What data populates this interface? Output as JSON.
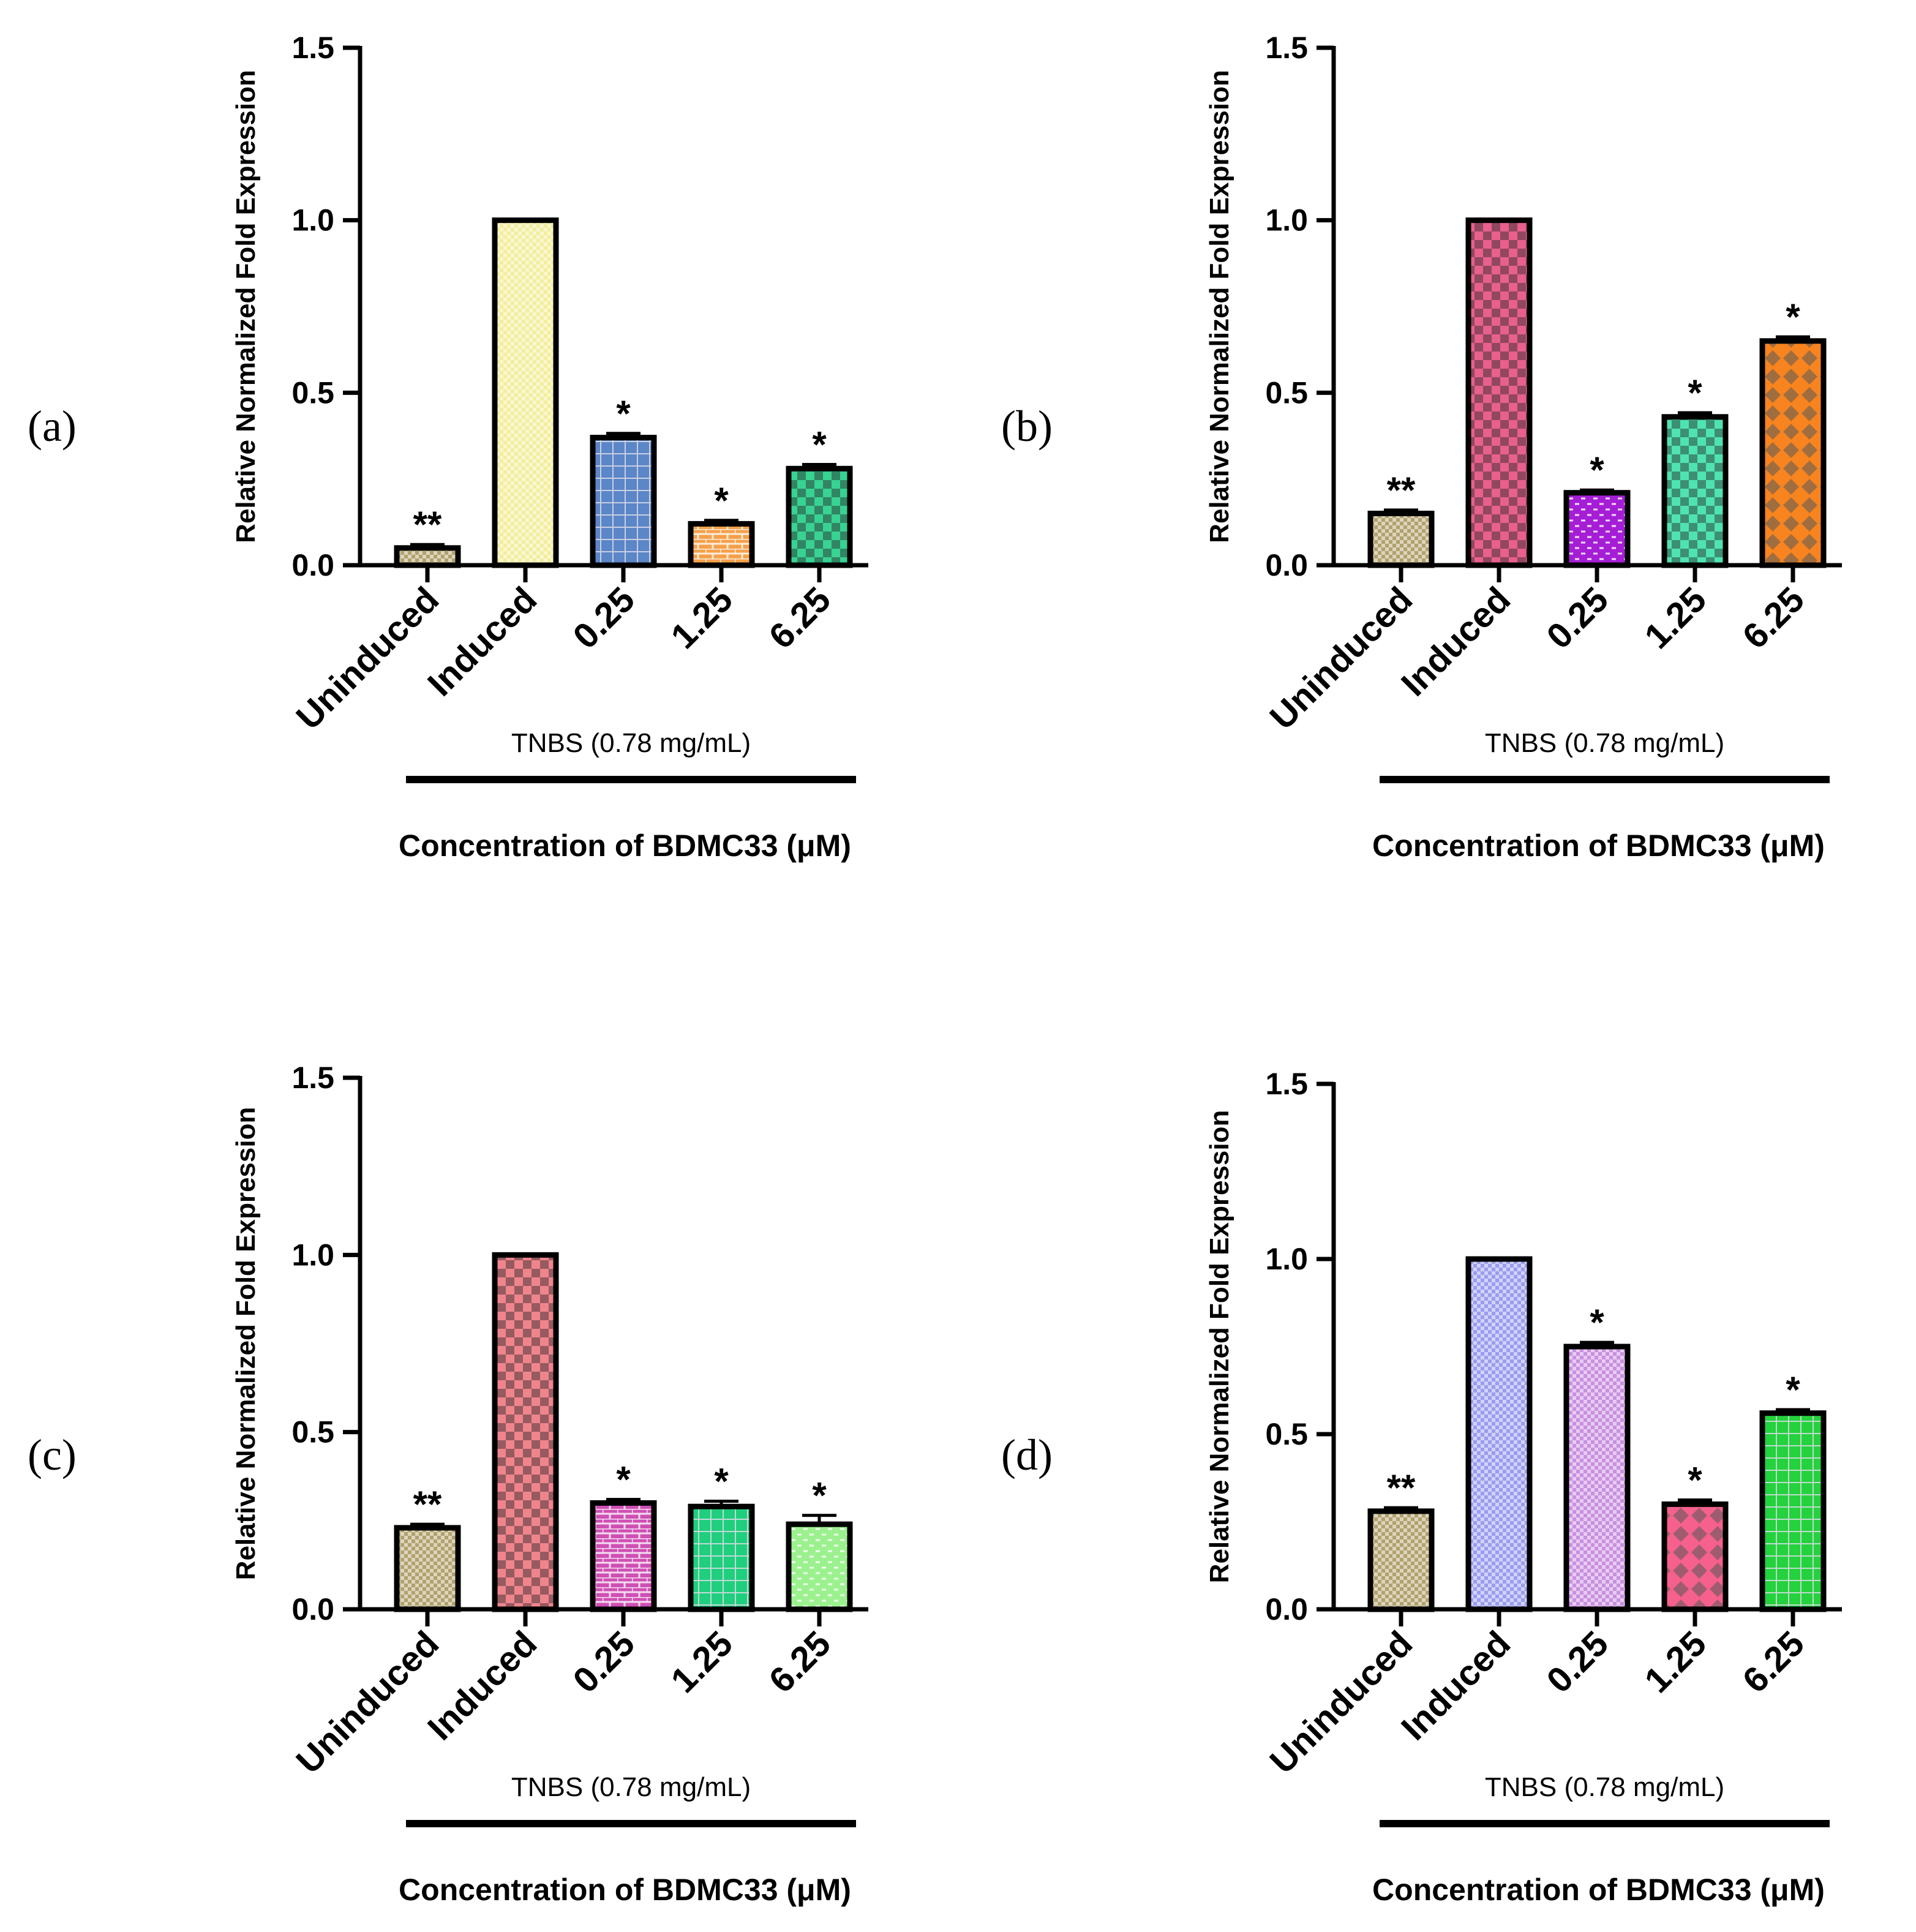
{
  "figure": {
    "group_label": "TNBS (0.78 mg/mL)",
    "xlabel": "Concentration of BDMC33 (μM)",
    "ylabel": "Relative Normalized Fold Expression"
  },
  "chart_data": [
    {
      "panel": "(a)",
      "type": "bar",
      "categories": [
        "Uninduced",
        "Induced",
        "0.25",
        "1.25",
        "6.25"
      ],
      "values": [
        0.05,
        1.0,
        0.37,
        0.12,
        0.28
      ],
      "errors": [
        0.01,
        0.0,
        0.012,
        0.01,
        0.012
      ],
      "significance": [
        "**",
        "",
        "*",
        "*",
        "*"
      ],
      "fill_colors": [
        "#b2a16c",
        "#f2ee9c",
        "#5b86c7",
        "#f5a04a",
        "#38d293"
      ],
      "title": "",
      "xlabel": "Concentration of BDMC33 (μM)",
      "ylabel": "Relative Normalized Fold Expression",
      "ylim": [
        0,
        1.5
      ],
      "yticks": [
        "0.0",
        "0.5",
        "1.0",
        "1.5"
      ],
      "group_label": "TNBS (0.78 mg/mL)"
    },
    {
      "panel": "(b)",
      "type": "bar",
      "categories": [
        "Uninduced",
        "Induced",
        "0.25",
        "1.25",
        "6.25"
      ],
      "values": [
        0.15,
        1.0,
        0.21,
        0.43,
        0.65
      ],
      "errors": [
        0.01,
        0.0,
        0.008,
        0.012,
        0.012
      ],
      "significance": [
        "**",
        "",
        "*",
        "*",
        "*"
      ],
      "fill_colors": [
        "#b2a16c",
        "#e8608c",
        "#a51ed6",
        "#4fe3b2",
        "#f7841f"
      ],
      "title": "",
      "xlabel": "Concentration of BDMC33 (μM)",
      "ylabel": "Relative Normalized Fold Expression",
      "ylim": [
        0,
        1.5
      ],
      "yticks": [
        "0.0",
        "0.5",
        "1.0",
        "1.5"
      ],
      "group_label": "TNBS (0.78 mg/mL)"
    },
    {
      "panel": "(c)",
      "type": "bar",
      "categories": [
        "Uninduced",
        "Induced",
        "0.25",
        "1.25",
        "6.25"
      ],
      "values": [
        0.23,
        1.0,
        0.3,
        0.29,
        0.24
      ],
      "errors": [
        0.01,
        0.0,
        0.01,
        0.015,
        0.025
      ],
      "significance": [
        "**",
        "",
        "*",
        "*",
        "*"
      ],
      "fill_colors": [
        "#b2a16c",
        "#f0848c",
        "#cf4fb4",
        "#1fcf7d",
        "#9cf18f"
      ],
      "title": "",
      "xlabel": "Concentration of BDMC33 (μM)",
      "ylabel": "Relative Normalized Fold Expression",
      "ylim": [
        0,
        1.5
      ],
      "yticks": [
        "0.0",
        "0.5",
        "1.0",
        "1.5"
      ],
      "group_label": "TNBS (0.78 mg/mL)"
    },
    {
      "panel": "(d)",
      "type": "bar",
      "categories": [
        "Uninduced",
        "Induced",
        "0.25",
        "1.25",
        "6.25"
      ],
      "values": [
        0.28,
        1.0,
        0.75,
        0.3,
        0.56
      ],
      "errors": [
        0.01,
        0.0,
        0.012,
        0.012,
        0.01
      ],
      "significance": [
        "**",
        "",
        "*",
        "*",
        "*"
      ],
      "fill_colors": [
        "#b2a16c",
        "#9a9cf0",
        "#c98fe0",
        "#f5608c",
        "#23d23c"
      ],
      "title": "",
      "xlabel": "Concentration of BDMC33 (μM)",
      "ylabel": "Relative Normalized Fold Expression",
      "ylim": [
        0,
        1.5
      ],
      "yticks": [
        "0.0",
        "0.5",
        "1.0",
        "1.5"
      ],
      "group_label": "TNBS (0.78 mg/mL)"
    }
  ]
}
